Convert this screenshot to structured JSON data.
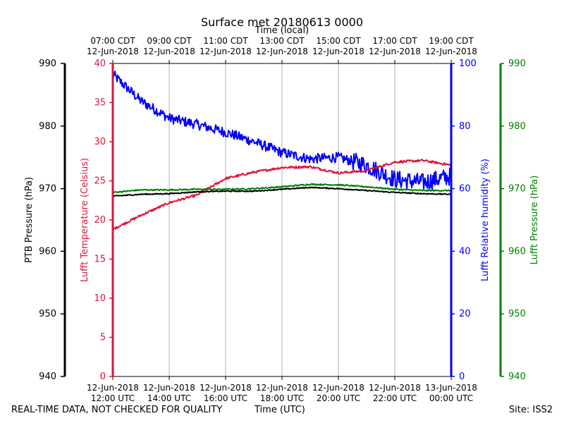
{
  "chart_data": {
    "type": "line",
    "title": "Surface met 20180613 0000",
    "xlabel_bottom": "Time (UTC)",
    "xlabel_top": "Time (local)",
    "x_ticks_bottom": [
      [
        "12-Jun-2018",
        "12:00 UTC"
      ],
      [
        "12-Jun-2018",
        "14:00 UTC"
      ],
      [
        "12-Jun-2018",
        "16:00 UTC"
      ],
      [
        "12-Jun-2018",
        "18:00 UTC"
      ],
      [
        "12-Jun-2018",
        "20:00 UTC"
      ],
      [
        "12-Jun-2018",
        "22:00 UTC"
      ],
      [
        "13-Jun-2018",
        "00:00 UTC"
      ]
    ],
    "x_ticks_top": [
      [
        "07:00 CDT",
        "12-Jun-2018"
      ],
      [
        "09:00 CDT",
        "12-Jun-2018"
      ],
      [
        "11:00 CDT",
        "12-Jun-2018"
      ],
      [
        "13:00 CDT",
        "12-Jun-2018"
      ],
      [
        "15:00 CDT",
        "12-Jun-2018"
      ],
      [
        "17:00 CDT",
        "12-Jun-2018"
      ],
      [
        "19:00 CDT",
        "12-Jun-2018"
      ]
    ],
    "x_hours_utc": [
      12,
      13,
      14,
      15,
      16,
      17,
      18,
      19,
      20,
      21,
      22,
      23,
      24
    ],
    "xlim_hours_utc": [
      12,
      24
    ],
    "axes": {
      "ptb_pressure": {
        "label": "PTB Pressure (hPa)",
        "ylim": [
          940,
          990
        ],
        "ticks": [
          940,
          950,
          960,
          970,
          980,
          990
        ],
        "color": "#000000"
      },
      "temperature": {
        "label": "Lufft Temperature (Celsius)",
        "ylim": [
          0,
          40
        ],
        "ticks": [
          0,
          5,
          10,
          15,
          20,
          25,
          30,
          35,
          40
        ],
        "color": "#dc143c"
      },
      "humidity": {
        "label": "Lufft Relative humidity (%)",
        "ylim": [
          0,
          100
        ],
        "ticks": [
          0,
          20,
          40,
          60,
          80,
          100
        ],
        "color": "#0000ff"
      },
      "lufft_pressure": {
        "label": "Lufft Pressure (hPa)",
        "ylim": [
          940,
          990
        ],
        "ticks": [
          940,
          950,
          960,
          970,
          980,
          990
        ],
        "color": "#008000"
      }
    },
    "series": [
      {
        "name": "PTB Pressure",
        "axis": "ptb_pressure",
        "color": "#000000",
        "values": [
          968.8,
          969.1,
          969.2,
          969.5,
          969.6,
          969.6,
          969.9,
          970.2,
          970.0,
          969.7,
          969.4,
          969.2,
          969.1
        ]
      },
      {
        "name": "Lufft Temperature",
        "axis": "temperature",
        "color": "#dc143c",
        "values": [
          18.8,
          20.6,
          22.2,
          23.2,
          25.3,
          26.1,
          26.7,
          26.8,
          26.0,
          26.3,
          27.4,
          27.6,
          27.0
        ]
      },
      {
        "name": "Lufft Relative humidity",
        "axis": "humidity",
        "color": "#0000ff",
        "values": [
          96.5,
          88.0,
          82.5,
          80.5,
          78.0,
          75.0,
          71.5,
          69.5,
          70.0,
          67.5,
          63.0,
          62.0,
          64.0
        ]
      },
      {
        "name": "Lufft Pressure",
        "axis": "lufft_pressure",
        "color": "#008000",
        "values": [
          969.4,
          969.8,
          969.8,
          969.9,
          969.9,
          970.0,
          970.3,
          970.7,
          970.6,
          970.3,
          969.9,
          969.7,
          969.7
        ]
      }
    ]
  },
  "footer": {
    "disclaimer": "REAL-TIME DATA, NOT CHECKED FOR QUALITY",
    "time_label": "Time (UTC)",
    "site": "Site: ISS2"
  }
}
